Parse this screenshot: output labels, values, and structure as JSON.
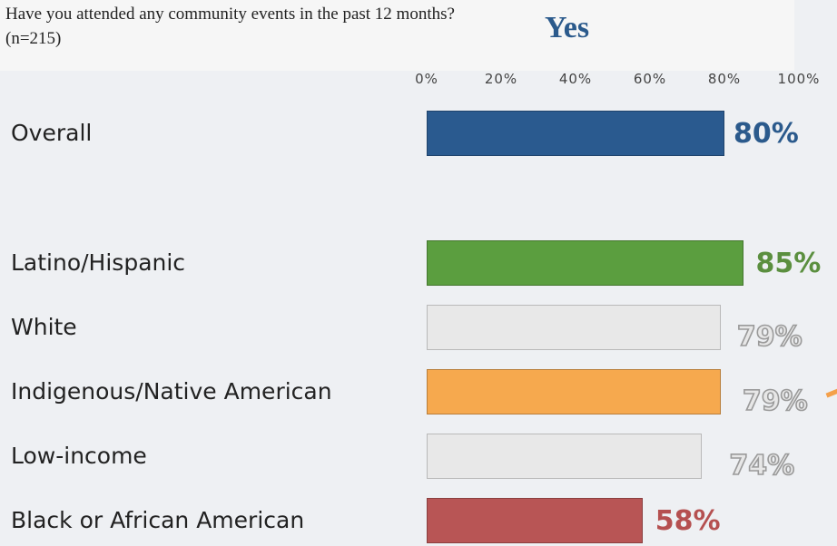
{
  "header": {
    "question": "Have you attended any community events in the past 12 months? (n=215)",
    "response_label": "Yes"
  },
  "chart_data": {
    "type": "bar",
    "orientation": "horizontal",
    "title": "Yes",
    "xlim": [
      0,
      100
    ],
    "tick_labels": [
      "0%",
      "20%",
      "40%",
      "60%",
      "80%",
      "100%"
    ],
    "categories": [
      "Overall",
      "Latino/Hispanic",
      "White",
      "Indigenous/Native American",
      "Low-income",
      "Black or African American"
    ],
    "values": [
      80,
      85,
      79,
      79,
      74,
      58
    ],
    "value_labels": [
      "80%",
      "85%",
      "79%",
      "79%",
      "74%",
      "58%"
    ],
    "colors": [
      "#2a5a8f",
      "#5b9e3f",
      "#e8e8e8",
      "#f6a94e",
      "#e8e8e8",
      "#b85555"
    ],
    "label_colors": [
      "#2b5a8c",
      "#5b8f3f",
      "#b0b0b0",
      "#b0b0b0",
      "#b0b0b0",
      "#b55050"
    ]
  }
}
